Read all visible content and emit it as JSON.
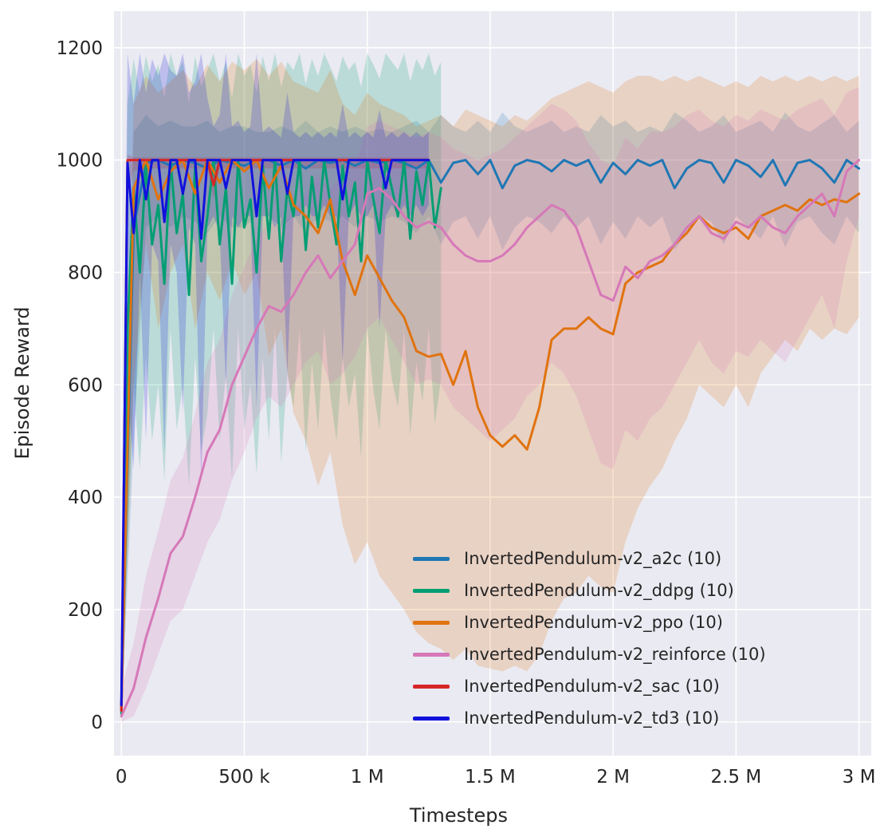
{
  "chart_data": {
    "type": "line",
    "title": "",
    "xlabel": "Timesteps",
    "ylabel": "Episode Reward",
    "xlim": [
      -30000,
      3050000
    ],
    "ylim": [
      -60,
      1265
    ],
    "grid": true,
    "legend_position": "lower-right-inside",
    "background": "#eaeaf2",
    "figure_background": "#ffffff",
    "grid_color": "#ffffff",
    "text_color": "#262626",
    "band_opacity": 0.2,
    "x_ticks": [
      {
        "v": 0,
        "label": "0"
      },
      {
        "v": 500000,
        "label": "500 k"
      },
      {
        "v": 1000000,
        "label": "1 M"
      },
      {
        "v": 1500000,
        "label": "1.5 M"
      },
      {
        "v": 2000000,
        "label": "2 M"
      },
      {
        "v": 2500000,
        "label": "2.5 M"
      },
      {
        "v": 3000000,
        "label": "3 M"
      }
    ],
    "y_ticks": [
      {
        "v": 0,
        "label": "0"
      },
      {
        "v": 200,
        "label": "200"
      },
      {
        "v": 400,
        "label": "400"
      },
      {
        "v": 600,
        "label": "600"
      },
      {
        "v": 800,
        "label": "800"
      },
      {
        "v": 1000,
        "label": "1000"
      },
      {
        "v": 1200,
        "label": "1200"
      }
    ],
    "series": [
      {
        "name": "InvertedPendulum-v2_a2c (10)",
        "color": "#1f77b4",
        "x_start": 0,
        "x_step": 50000,
        "y": [
          30,
          880,
          995,
          1000,
          990,
          1000,
          995,
          985,
          1000,
          995,
          990,
          1000,
          1000,
          990,
          1000,
          985,
          1000,
          995,
          1000,
          990,
          1000,
          995,
          1000,
          995,
          985,
          1000,
          960,
          995,
          1000,
          975,
          1000,
          950,
          990,
          1000,
          995,
          980,
          1000,
          990,
          1000,
          960,
          995,
          975,
          1000,
          990,
          1000,
          950,
          985,
          1000,
          995,
          960,
          1000,
          990,
          970,
          1000,
          955,
          995,
          1000,
          985,
          960,
          1000,
          985
        ],
        "band_low": [
          0,
          500,
          880,
          900,
          880,
          900,
          890,
          870,
          900,
          880,
          880,
          900,
          900,
          880,
          900,
          870,
          900,
          890,
          900,
          880,
          900,
          890,
          900,
          890,
          870,
          900,
          850,
          890,
          900,
          860,
          900,
          840,
          880,
          900,
          890,
          870,
          900,
          880,
          900,
          850,
          890,
          860,
          900,
          880,
          900,
          840,
          870,
          900,
          890,
          850,
          900,
          880,
          860,
          900,
          845,
          890,
          900,
          870,
          850,
          900,
          870
        ],
        "band_high": [
          120,
          1050,
          1080,
          1060,
          1070,
          1060,
          1060,
          1070,
          1050,
          1060,
          1060,
          1050,
          1050,
          1060,
          1050,
          1070,
          1050,
          1060,
          1050,
          1060,
          1050,
          1055,
          1050,
          1060,
          1070,
          1050,
          1080,
          1060,
          1050,
          1070,
          1050,
          1085,
          1060,
          1050,
          1060,
          1070,
          1050,
          1060,
          1050,
          1080,
          1060,
          1070,
          1050,
          1060,
          1050,
          1085,
          1070,
          1050,
          1060,
          1080,
          1050,
          1060,
          1070,
          1050,
          1085,
          1060,
          1050,
          1065,
          1080,
          1050,
          1070
        ]
      },
      {
        "name": "InvertedPendulum-v2_ddpg (10)",
        "color": "#029e73",
        "x_start": 0,
        "x_step": 25000,
        "y": [
          15,
          700,
          950,
          800,
          990,
          850,
          920,
          780,
          1000,
          870,
          940,
          760,
          990,
          820,
          900,
          1000,
          850,
          950,
          780,
          1000,
          880,
          930,
          800,
          990,
          860,
          1000,
          820,
          950,
          900,
          1000,
          840,
          970,
          880,
          1000,
          920,
          850,
          990,
          900,
          960,
          820,
          1000,
          930,
          870,
          1000,
          950,
          900,
          1000,
          860,
          980,
          920,
          1000,
          880,
          950
        ],
        "band_low": [
          0,
          300,
          600,
          450,
          650,
          500,
          600,
          430,
          700,
          520,
          600,
          420,
          650,
          480,
          550,
          700,
          500,
          620,
          430,
          700,
          520,
          600,
          440,
          650,
          500,
          700,
          460,
          620,
          560,
          700,
          480,
          640,
          520,
          700,
          580,
          500,
          650,
          560,
          620,
          470,
          700,
          590,
          520,
          700,
          610,
          560,
          700,
          510,
          640,
          570,
          700,
          530,
          610
        ],
        "band_high": [
          100,
          1100,
          1180,
          1120,
          1185,
          1140,
          1170,
          1110,
          1190,
          1150,
          1175,
          1100,
          1185,
          1130,
          1160,
          1190,
          1140,
          1175,
          1110,
          1190,
          1150,
          1170,
          1120,
          1185,
          1140,
          1190,
          1130,
          1175,
          1160,
          1190,
          1135,
          1180,
          1150,
          1190,
          1165,
          1140,
          1185,
          1160,
          1175,
          1130,
          1190,
          1170,
          1145,
          1190,
          1175,
          1160,
          1190,
          1140,
          1180,
          1160,
          1190,
          1150,
          1175
        ]
      },
      {
        "name": "InvertedPendulum-v2_ppo (10)",
        "color": "#e0730f",
        "x_start": 0,
        "x_step": 50000,
        "y": [
          20,
          950,
          1000,
          930,
          980,
          1000,
          940,
          1000,
          960,
          1000,
          980,
          1000,
          950,
          990,
          920,
          900,
          870,
          930,
          820,
          760,
          830,
          790,
          750,
          720,
          660,
          650,
          655,
          600,
          660,
          560,
          510,
          490,
          510,
          485,
          560,
          680,
          700,
          700,
          720,
          700,
          690,
          780,
          800,
          810,
          820,
          850,
          870,
          900,
          880,
          870,
          880,
          860,
          900,
          910,
          920,
          910,
          930,
          920,
          930,
          925,
          940
        ],
        "band_low": [
          0,
          600,
          850,
          700,
          800,
          850,
          700,
          800,
          750,
          820,
          760,
          800,
          650,
          700,
          550,
          500,
          420,
          480,
          350,
          280,
          320,
          260,
          230,
          200,
          160,
          140,
          130,
          110,
          130,
          100,
          95,
          90,
          100,
          90,
          120,
          180,
          220,
          230,
          260,
          240,
          230,
          320,
          380,
          420,
          450,
          500,
          540,
          600,
          580,
          560,
          600,
          560,
          620,
          650,
          680,
          660,
          700,
          680,
          700,
          690,
          720
        ],
        "band_high": [
          110,
          1100,
          1150,
          1120,
          1140,
          1160,
          1130,
          1170,
          1140,
          1175,
          1160,
          1180,
          1150,
          1175,
          1140,
          1130,
          1120,
          1160,
          1100,
          1080,
          1120,
          1100,
          1090,
          1080,
          1060,
          1070,
          1080,
          1060,
          1090,
          1080,
          1070,
          1060,
          1080,
          1070,
          1090,
          1110,
          1120,
          1130,
          1140,
          1130,
          1120,
          1140,
          1150,
          1150,
          1140,
          1150,
          1140,
          1150,
          1140,
          1130,
          1140,
          1130,
          1150,
          1140,
          1150,
          1140,
          1150,
          1140,
          1150,
          1140,
          1150
        ]
      },
      {
        "name": "InvertedPendulum-v2_reinforce (10)",
        "color": "#d678b8",
        "x_start": 0,
        "x_step": 50000,
        "y": [
          10,
          60,
          150,
          220,
          300,
          330,
          400,
          480,
          520,
          600,
          650,
          700,
          740,
          730,
          760,
          800,
          830,
          790,
          820,
          850,
          940,
          950,
          930,
          900,
          880,
          890,
          880,
          850,
          830,
          820,
          820,
          830,
          850,
          880,
          900,
          920,
          910,
          880,
          820,
          760,
          750,
          810,
          790,
          820,
          830,
          850,
          880,
          900,
          870,
          860,
          890,
          880,
          900,
          880,
          870,
          900,
          920,
          940,
          900,
          980,
          1000
        ],
        "band_low": [
          0,
          10,
          60,
          120,
          180,
          200,
          260,
          320,
          360,
          430,
          480,
          540,
          580,
          560,
          600,
          640,
          660,
          600,
          620,
          650,
          700,
          720,
          680,
          640,
          600,
          610,
          600,
          560,
          540,
          520,
          500,
          520,
          540,
          580,
          600,
          640,
          620,
          580,
          520,
          460,
          450,
          520,
          500,
          540,
          560,
          600,
          640,
          680,
          640,
          620,
          660,
          650,
          680,
          660,
          640,
          680,
          720,
          760,
          700,
          820,
          900
        ],
        "band_high": [
          60,
          140,
          260,
          340,
          430,
          470,
          550,
          640,
          680,
          760,
          810,
          860,
          890,
          880,
          910,
          940,
          970,
          950,
          970,
          990,
          1060,
          1070,
          1060,
          1050,
          1040,
          1050,
          1040,
          1020,
          1010,
          1000,
          1010,
          1020,
          1040,
          1060,
          1080,
          1100,
          1090,
          1070,
          1030,
          1000,
          990,
          1040,
          1020,
          1050,
          1050,
          1060,
          1080,
          1090,
          1070,
          1060,
          1080,
          1070,
          1090,
          1080,
          1070,
          1090,
          1100,
          1110,
          1080,
          1120,
          1130
        ]
      },
      {
        "name": "InvertedPendulum-v2_sac (10)",
        "color": "#d62728",
        "x_start": 0,
        "x_step": 25000,
        "y": [
          20,
          1000,
          1000,
          1000,
          1000,
          1000,
          1000,
          1000,
          1000,
          1000,
          1000,
          1000,
          1000,
          1000,
          1000,
          955,
          1000,
          1000,
          1000,
          1000,
          1000,
          1000,
          1000,
          1000,
          1000,
          1000,
          1000,
          1000,
          1000,
          1000,
          1000,
          1000,
          1000,
          1000,
          1000,
          1000,
          1000,
          1000,
          1000,
          1000,
          1000,
          1000,
          1000,
          1000,
          1000,
          1000,
          1000,
          1000,
          1000,
          1000,
          1000
        ],
        "band_low": [
          0,
          940,
          980,
          985,
          985,
          985,
          985,
          985,
          985,
          985,
          985,
          985,
          985,
          985,
          985,
          930,
          985,
          985,
          985,
          985,
          985,
          985,
          985,
          985,
          985,
          985,
          985,
          985,
          985,
          985,
          985,
          985,
          985,
          985,
          985,
          985,
          985,
          985,
          985,
          985,
          985,
          985,
          985,
          985,
          985,
          985,
          985,
          985,
          985,
          985,
          985
        ],
        "band_high": [
          80,
          1010,
          1005,
          1005,
          1005,
          1005,
          1005,
          1005,
          1005,
          1005,
          1005,
          1005,
          1005,
          1005,
          1005,
          1005,
          1005,
          1005,
          1005,
          1005,
          1005,
          1005,
          1005,
          1005,
          1005,
          1005,
          1005,
          1005,
          1005,
          1005,
          1005,
          1005,
          1005,
          1005,
          1005,
          1005,
          1005,
          1005,
          1005,
          1005,
          1005,
          1005,
          1005,
          1005,
          1005,
          1005,
          1005,
          1005,
          1005,
          1005,
          1005
        ]
      },
      {
        "name": "InvertedPendulum-v2_td3 (10)",
        "color": "#1111dd",
        "x_start": 0,
        "x_step": 25000,
        "y": [
          30,
          995,
          870,
          1000,
          930,
          1000,
          1000,
          890,
          1000,
          1000,
          940,
          1000,
          1000,
          860,
          1000,
          1000,
          1000,
          950,
          1000,
          1000,
          1000,
          1000,
          900,
          1000,
          1000,
          1000,
          1000,
          940,
          1000,
          1000,
          1000,
          1000,
          1000,
          1000,
          1000,
          1000,
          930,
          1000,
          1000,
          1000,
          1000,
          1000,
          1000,
          950,
          1000,
          1000,
          1000,
          1000,
          1000,
          1000,
          1000
        ],
        "band_low": [
          0,
          600,
          450,
          800,
          500,
          850,
          820,
          480,
          850,
          800,
          550,
          880,
          850,
          430,
          880,
          900,
          870,
          600,
          900,
          880,
          900,
          900,
          560,
          900,
          900,
          880,
          900,
          620,
          900,
          900,
          920,
          900,
          900,
          920,
          900,
          900,
          640,
          900,
          920,
          900,
          900,
          920,
          700,
          900,
          920,
          900,
          920,
          900,
          920,
          900,
          920
        ],
        "band_high": [
          150,
          1190,
          1100,
          1190,
          1120,
          1180,
          1150,
          1190,
          1160,
          1150,
          1190,
          1120,
          1140,
          1190,
          1110,
          1060,
          1080,
          1190,
          1060,
          1070,
          1050,
          1060,
          1190,
          1050,
          1060,
          1050,
          1040,
          1120,
          1050,
          1040,
          1050,
          1040,
          1050,
          1040,
          1050,
          1040,
          1100,
          1040,
          1050,
          1040,
          1050,
          1040,
          1090,
          1040,
          1050,
          1040,
          1050,
          1040,
          1050,
          1040,
          1050
        ]
      }
    ]
  }
}
